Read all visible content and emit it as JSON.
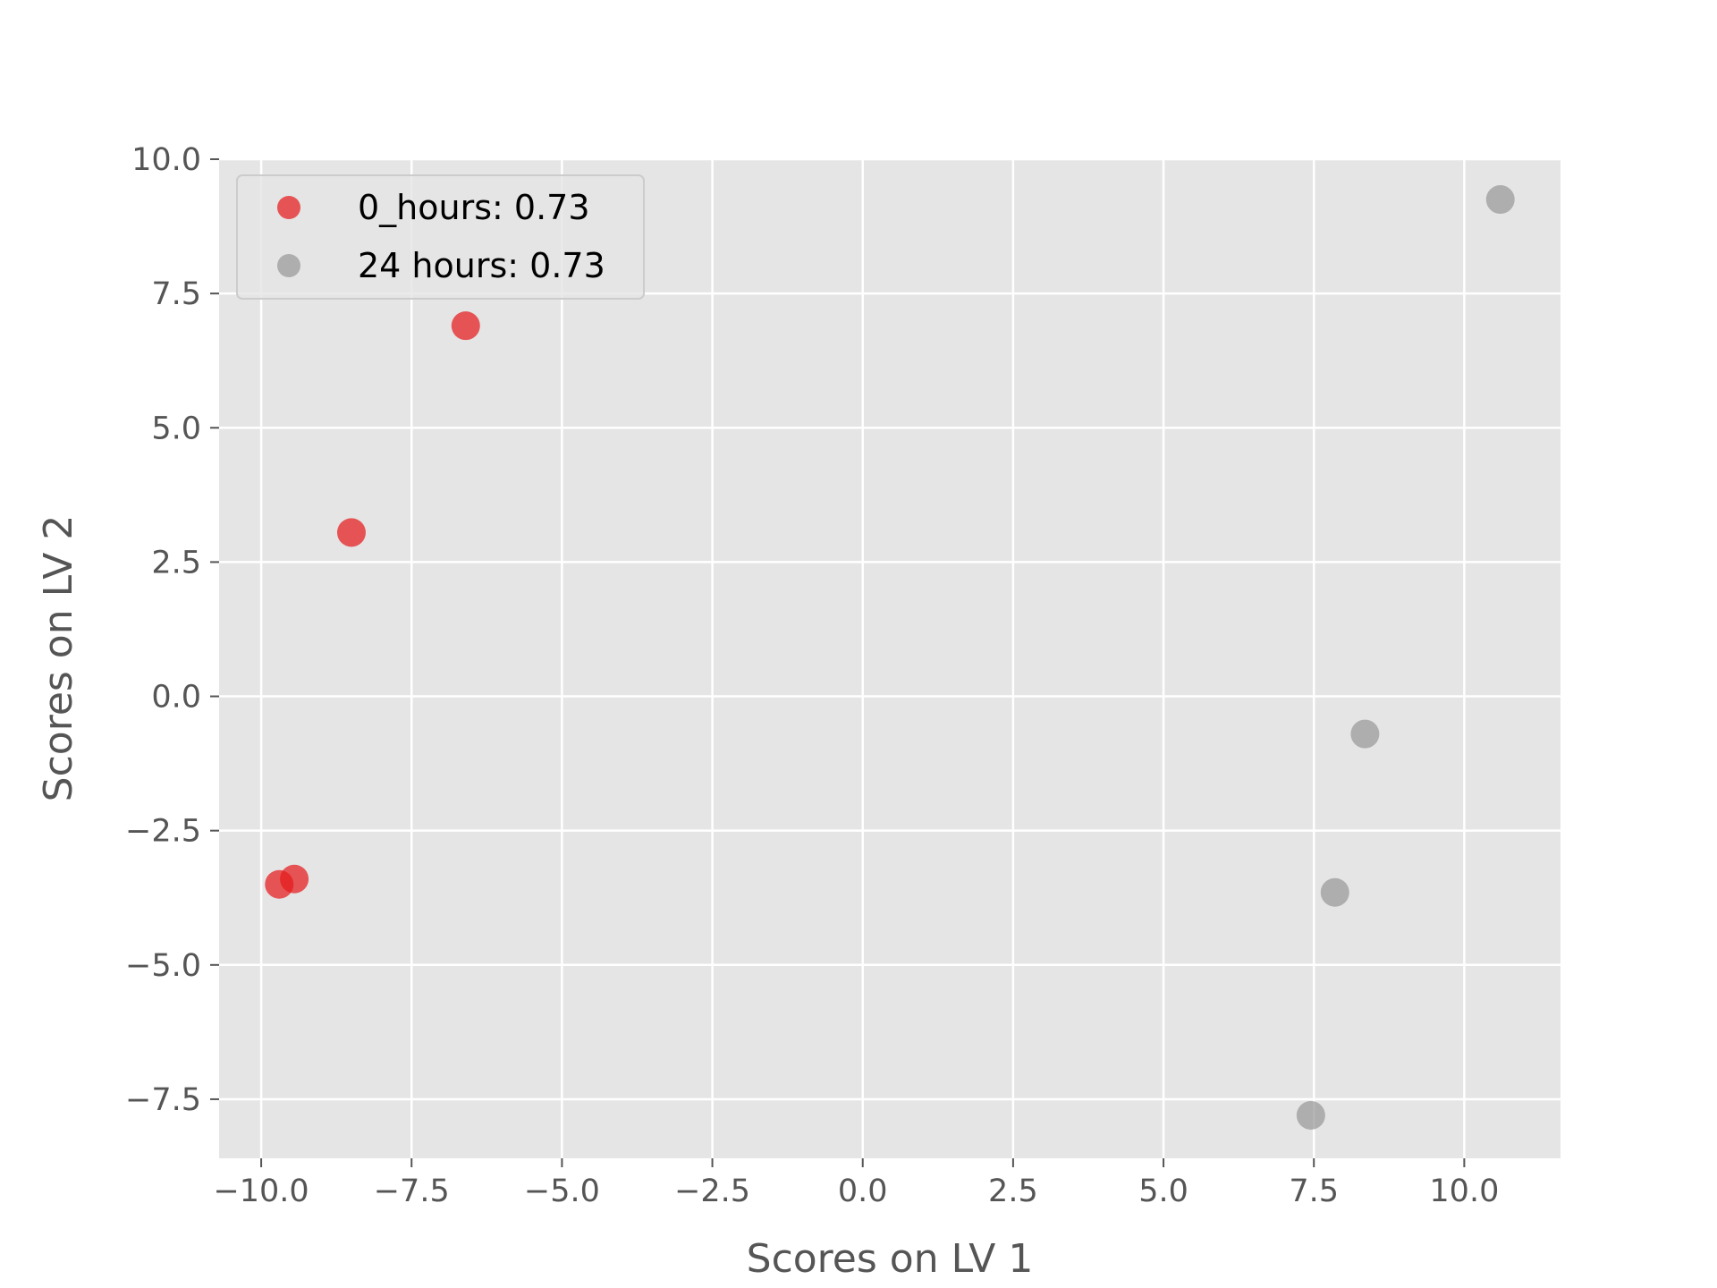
{
  "chart_data": {
    "type": "scatter",
    "title": "",
    "xlabel": "Scores on LV 1",
    "ylabel": "Scores on LV 2",
    "xlim": [
      -10.7,
      11.6
    ],
    "ylim": [
      -8.6,
      10.0
    ],
    "xticks": [
      -10.0,
      -7.5,
      -5.0,
      -2.5,
      0.0,
      2.5,
      5.0,
      7.5,
      10.0
    ],
    "xtick_labels": [
      "−10.0",
      "−7.5",
      "−5.0",
      "−2.5",
      "0.0",
      "2.5",
      "5.0",
      "7.5",
      "10.0"
    ],
    "yticks": [
      -7.5,
      -5.0,
      -2.5,
      0.0,
      2.5,
      5.0,
      7.5,
      10.0
    ],
    "ytick_labels": [
      "−7.5",
      "−5.0",
      "−2.5",
      "0.0",
      "2.5",
      "5.0",
      "7.5",
      "10.0"
    ],
    "grid": true,
    "legend_position": "upper-left",
    "series": [
      {
        "name": "0_hours: 0.73",
        "color": "#e41a1c",
        "points": [
          {
            "x": -6.6,
            "y": 6.9
          },
          {
            "x": -8.5,
            "y": 3.05
          },
          {
            "x": -9.45,
            "y": -3.4
          },
          {
            "x": -9.7,
            "y": -3.5
          }
        ]
      },
      {
        "name": "24 hours: 0.73",
        "color": "#999999",
        "points": [
          {
            "x": 10.6,
            "y": 9.25
          },
          {
            "x": 8.35,
            "y": -0.7
          },
          {
            "x": 7.85,
            "y": -3.65
          },
          {
            "x": 7.45,
            "y": -7.8
          }
        ]
      }
    ]
  }
}
